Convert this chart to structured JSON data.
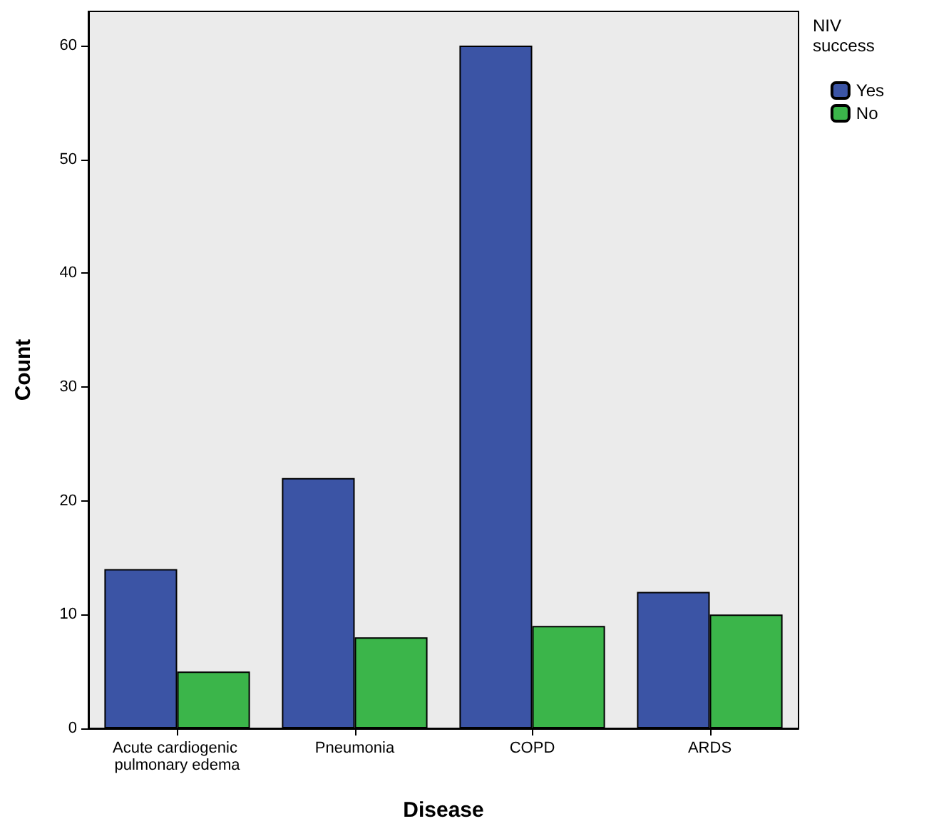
{
  "chart_data": {
    "type": "bar",
    "xlabel": "Disease",
    "ylabel": "Count",
    "legend_title": "NIV success",
    "categories": [
      "Acute cardiogenic pulmonary edema",
      "Pneumonia",
      "COPD",
      "ARDS"
    ],
    "series": [
      {
        "name": "Yes",
        "color": "#3b54a5",
        "values": [
          14,
          22,
          60,
          12
        ]
      },
      {
        "name": "No",
        "color": "#3bb54a",
        "values": [
          5,
          8,
          9,
          10
        ]
      }
    ],
    "ylim": [
      0,
      63
    ],
    "yticks": [
      0,
      10,
      20,
      30,
      40,
      50,
      60
    ],
    "grid": false,
    "legend": "top right"
  }
}
